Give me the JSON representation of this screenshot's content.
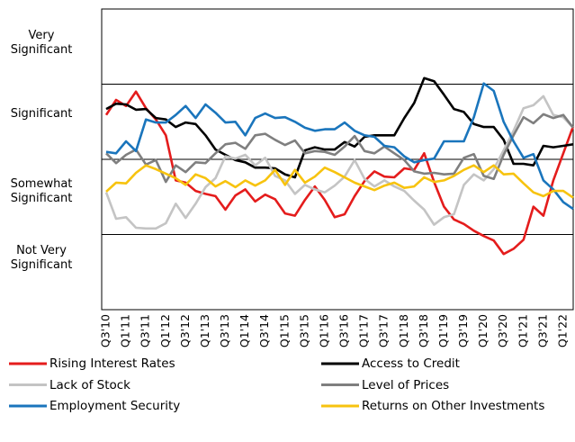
{
  "chart_data": {
    "type": "line",
    "categories": [
      "Q3'10",
      null,
      "Q1'11",
      null,
      "Q3'11",
      null,
      "Q1'12",
      null,
      "Q3'12",
      null,
      "Q1'13",
      null,
      "Q3'13",
      null,
      "Q1'14",
      null,
      "Q3'14",
      null,
      "Q1'15",
      null,
      "Q3'15",
      null,
      "Q1'16",
      null,
      "Q3'16",
      null,
      "Q1'17",
      null,
      "Q3'17",
      null,
      "Q1'18",
      null,
      "Q3'18",
      null,
      "Q1'19",
      null,
      "Q3'19",
      null,
      "Q1'20",
      null,
      "Q3'20",
      null,
      "Q1'21",
      null,
      "Q3'21",
      null,
      "Q1'22",
      null
    ],
    "ylim": [
      0,
      4
    ],
    "yticks": [
      {
        "value": 3.55,
        "label": "Very Significant"
      },
      {
        "value": 2.6,
        "label": "Significant"
      },
      {
        "value": 1.57,
        "label": "Somewhat Significant"
      },
      {
        "value": 0.68,
        "label": "Not Very Significant"
      }
    ],
    "grid_lines": [
      1,
      2,
      3
    ],
    "series": [
      {
        "name": "Rising Interest Rates",
        "color": "#e41c1c",
        "values": [
          2.59,
          2.79,
          2.71,
          2.9,
          2.68,
          2.53,
          2.32,
          1.72,
          1.69,
          1.58,
          1.54,
          1.51,
          1.33,
          1.52,
          1.6,
          1.44,
          1.53,
          1.47,
          1.28,
          1.25,
          1.46,
          1.64,
          1.46,
          1.23,
          1.27,
          1.51,
          1.71,
          1.84,
          1.77,
          1.76,
          1.88,
          1.86,
          2.08,
          1.7,
          1.37,
          1.2,
          1.14,
          1.05,
          0.98,
          0.92,
          0.74,
          0.81,
          0.93,
          1.37,
          1.25,
          1.72,
          2.08,
          2.44
        ]
      },
      {
        "name": "Access to Credit",
        "color": "#000000",
        "values": [
          2.67,
          2.74,
          2.73,
          2.66,
          2.67,
          2.55,
          2.53,
          2.43,
          2.49,
          2.47,
          2.32,
          2.13,
          2.06,
          1.99,
          1.96,
          1.89,
          1.89,
          1.88,
          1.8,
          1.76,
          2.12,
          2.16,
          2.13,
          2.13,
          2.23,
          2.17,
          2.3,
          2.32,
          2.32,
          2.32,
          2.55,
          2.75,
          3.08,
          3.04,
          2.86,
          2.67,
          2.63,
          2.47,
          2.43,
          2.43,
          2.26,
          1.94,
          1.94,
          1.92,
          2.18,
          2.16,
          2.18,
          2.2
        ]
      },
      {
        "name": "Lack of Stock",
        "color": "#c4c4c4",
        "values": [
          1.56,
          1.21,
          1.23,
          1.09,
          1.08,
          1.08,
          1.15,
          1.41,
          1.22,
          1.41,
          1.63,
          1.75,
          2.04,
          2.01,
          2.06,
          1.92,
          2.02,
          1.78,
          1.72,
          1.54,
          1.66,
          1.6,
          1.56,
          1.65,
          1.77,
          1.99,
          1.74,
          1.64,
          1.72,
          1.64,
          1.58,
          1.45,
          1.33,
          1.13,
          1.23,
          1.27,
          1.66,
          1.8,
          1.72,
          1.87,
          2.12,
          2.38,
          2.68,
          2.72,
          2.84,
          2.59,
          2.56,
          2.42
        ]
      },
      {
        "name": "Level of Prices",
        "color": "#7f7f7f",
        "values": [
          2.08,
          1.95,
          2.06,
          2.13,
          1.93,
          1.99,
          1.7,
          1.92,
          1.83,
          1.96,
          1.95,
          2.08,
          2.2,
          2.22,
          2.14,
          2.32,
          2.34,
          2.26,
          2.19,
          2.25,
          2.08,
          2.11,
          2.1,
          2.06,
          2.17,
          2.31,
          2.11,
          2.08,
          2.17,
          2.08,
          1.99,
          1.84,
          1.81,
          1.82,
          1.8,
          1.81,
          2.02,
          2.07,
          1.78,
          1.74,
          2.06,
          2.32,
          2.56,
          2.48,
          2.6,
          2.55,
          2.59,
          2.42
        ]
      },
      {
        "name": "Employment Security",
        "color": "#1a75bc",
        "values": [
          2.1,
          2.08,
          2.24,
          2.11,
          2.53,
          2.49,
          2.49,
          2.59,
          2.71,
          2.55,
          2.73,
          2.62,
          2.49,
          2.5,
          2.32,
          2.55,
          2.61,
          2.55,
          2.56,
          2.5,
          2.42,
          2.38,
          2.4,
          2.4,
          2.49,
          2.38,
          2.32,
          2.3,
          2.18,
          2.16,
          2.04,
          1.96,
          1.99,
          2.01,
          2.24,
          2.24,
          2.24,
          2.56,
          3.01,
          2.91,
          2.5,
          2.24,
          2.02,
          2.07,
          1.72,
          1.6,
          1.43,
          1.34
        ]
      },
      {
        "name": "Returns on Other Investments",
        "color": "#f7c30f",
        "values": [
          1.57,
          1.69,
          1.68,
          1.82,
          1.92,
          1.87,
          1.81,
          1.75,
          1.66,
          1.8,
          1.75,
          1.64,
          1.71,
          1.63,
          1.72,
          1.65,
          1.72,
          1.86,
          1.66,
          1.86,
          1.69,
          1.77,
          1.89,
          1.83,
          1.76,
          1.69,
          1.64,
          1.59,
          1.65,
          1.69,
          1.62,
          1.64,
          1.76,
          1.7,
          1.72,
          1.78,
          1.86,
          1.92,
          1.83,
          1.92,
          1.8,
          1.81,
          1.68,
          1.56,
          1.51,
          1.58,
          1.58,
          1.49
        ]
      }
    ]
  }
}
